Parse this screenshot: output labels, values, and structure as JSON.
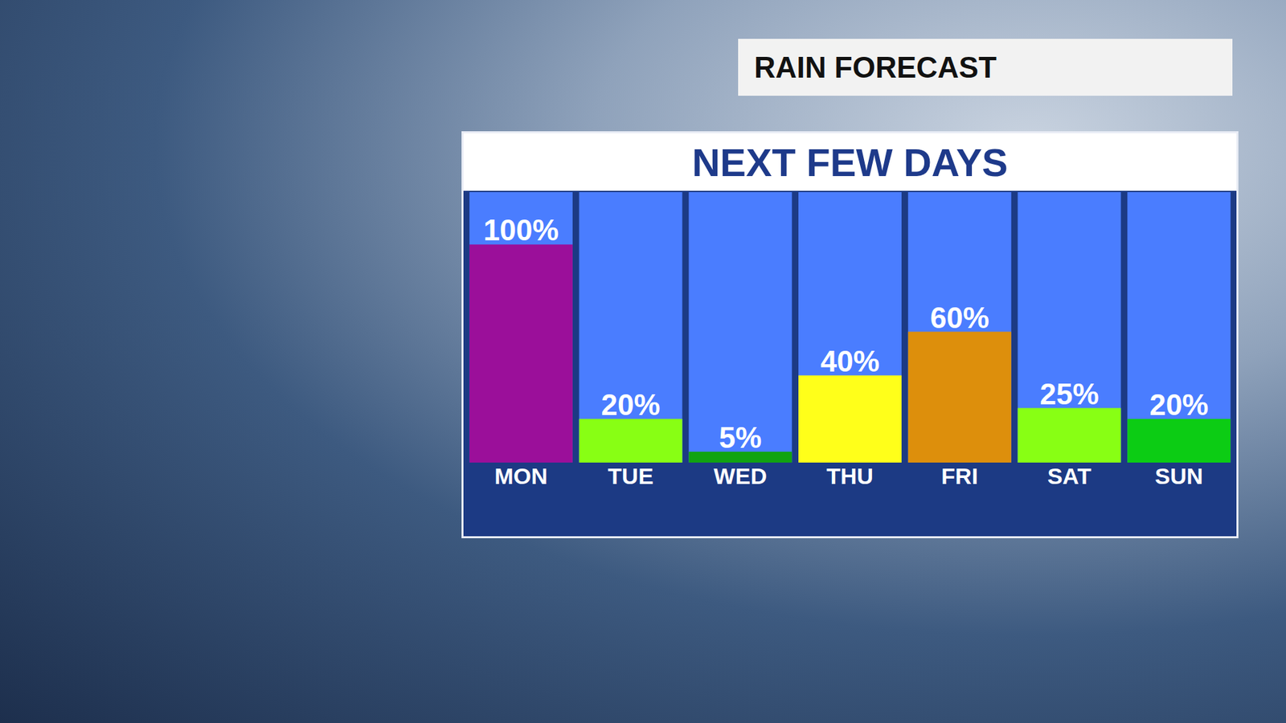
{
  "header": "RAIN FORECAST",
  "chart_data": {
    "type": "bar",
    "title": "NEXT FEW DAYS",
    "categories": [
      "MON",
      "TUE",
      "WED",
      "THU",
      "FRI",
      "SAT",
      "SUN"
    ],
    "values": [
      100,
      20,
      5,
      40,
      60,
      25,
      20
    ],
    "value_labels": [
      "100%",
      "20%",
      "5%",
      "40%",
      "60%",
      "25%",
      "20%"
    ],
    "colors": [
      "#9b0f9a",
      "#88ff14",
      "#11a311",
      "#ffff1a",
      "#dd8f0c",
      "#88ff14",
      "#0ccc14"
    ],
    "ylim": [
      0,
      124
    ],
    "data_labels": true,
    "tick_labels": "x",
    "grid": false
  }
}
